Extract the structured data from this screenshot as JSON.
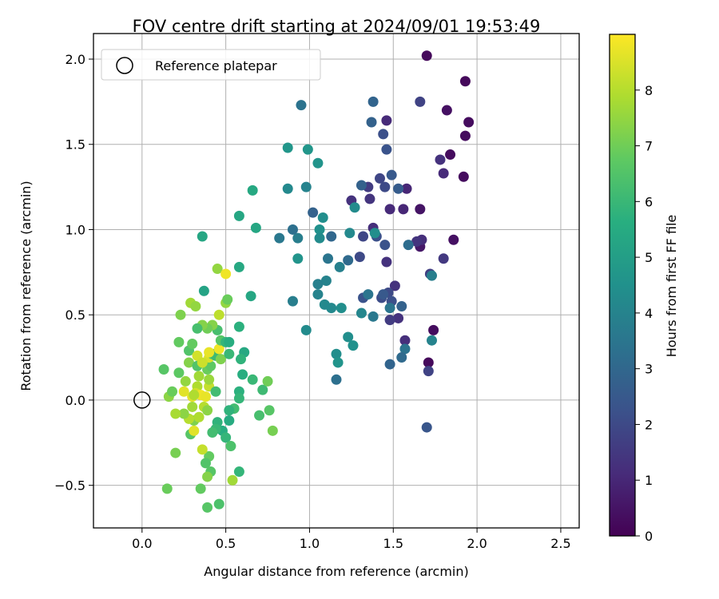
{
  "chart_data": {
    "type": "scatter",
    "title": "FOV centre drift starting at 2024/09/01 19:53:49",
    "xlabel": "Angular distance from reference (arcmin)",
    "ylabel": "Rotation from reference (arcmin)",
    "xlim": [
      -0.29,
      2.61
    ],
    "ylim": [
      -0.75,
      2.15
    ],
    "xticks": [
      0.0,
      0.5,
      1.0,
      1.5,
      2.0,
      2.5
    ],
    "xtick_labels": [
      "0.0",
      "0.5",
      "1.0",
      "1.5",
      "2.0",
      "2.5"
    ],
    "yticks": [
      -0.5,
      0.0,
      0.5,
      1.0,
      1.5,
      2.0
    ],
    "ytick_labels": [
      "−0.5",
      "0.0",
      "0.5",
      "1.0",
      "1.5",
      "2.0"
    ],
    "grid": true,
    "legend": {
      "placement": "top-left",
      "entries": [
        "Reference platepar"
      ]
    },
    "reference_point": {
      "x": 0.0,
      "y": 0.0,
      "marker": "open-circle"
    },
    "colorbar": {
      "label": "Hours from first FF file",
      "colormap": "viridis",
      "range": [
        0,
        9
      ],
      "ticks": [
        0,
        1,
        2,
        3,
        4,
        5,
        6,
        7,
        8
      ],
      "tick_labels": [
        "0",
        "1",
        "2",
        "3",
        "4",
        "5",
        "6",
        "7",
        "8"
      ]
    },
    "points": [
      {
        "x": 1.7,
        "y": 2.02,
        "c": 0.2
      },
      {
        "x": 1.93,
        "y": 1.87,
        "c": 0.2
      },
      {
        "x": 1.95,
        "y": 1.63,
        "c": 0.3
      },
      {
        "x": 1.82,
        "y": 1.7,
        "c": 0.4
      },
      {
        "x": 1.93,
        "y": 1.55,
        "c": 0.3
      },
      {
        "x": 1.84,
        "y": 1.44,
        "c": 0.3
      },
      {
        "x": 1.92,
        "y": 1.31,
        "c": 0.3
      },
      {
        "x": 1.66,
        "y": 1.12,
        "c": 0.5
      },
      {
        "x": 1.86,
        "y": 0.94,
        "c": 0.4
      },
      {
        "x": 1.66,
        "y": 0.9,
        "c": 0.6
      },
      {
        "x": 1.74,
        "y": 0.41,
        "c": 0.3
      },
      {
        "x": 1.71,
        "y": 0.22,
        "c": 0.2
      },
      {
        "x": 1.66,
        "y": 1.75,
        "c": 1.8
      },
      {
        "x": 1.78,
        "y": 1.41,
        "c": 1.3
      },
      {
        "x": 1.8,
        "y": 1.33,
        "c": 1.1
      },
      {
        "x": 1.58,
        "y": 1.24,
        "c": 1.0
      },
      {
        "x": 1.56,
        "y": 1.12,
        "c": 1.0
      },
      {
        "x": 1.48,
        "y": 1.12,
        "c": 1.1
      },
      {
        "x": 1.46,
        "y": 1.64,
        "c": 1.1
      },
      {
        "x": 1.67,
        "y": 0.94,
        "c": 1.2
      },
      {
        "x": 1.64,
        "y": 0.93,
        "c": 1.4
      },
      {
        "x": 1.8,
        "y": 0.83,
        "c": 1.5
      },
      {
        "x": 1.72,
        "y": 0.74,
        "c": 1.7
      },
      {
        "x": 1.71,
        "y": 0.17,
        "c": 1.8
      },
      {
        "x": 1.7,
        "y": -0.16,
        "c": 2.4
      },
      {
        "x": 1.57,
        "y": 0.35,
        "c": 1.2
      },
      {
        "x": 1.53,
        "y": 0.48,
        "c": 1.3
      },
      {
        "x": 1.48,
        "y": 0.47,
        "c": 1.6
      },
      {
        "x": 1.51,
        "y": 0.67,
        "c": 1.3
      },
      {
        "x": 1.46,
        "y": 0.81,
        "c": 1.3
      },
      {
        "x": 1.38,
        "y": 1.01,
        "c": 1.2
      },
      {
        "x": 1.36,
        "y": 1.18,
        "c": 1.4
      },
      {
        "x": 1.25,
        "y": 1.17,
        "c": 1.3
      },
      {
        "x": 1.35,
        "y": 1.25,
        "c": 1.6
      },
      {
        "x": 1.42,
        "y": 1.3,
        "c": 1.9
      },
      {
        "x": 1.45,
        "y": 1.25,
        "c": 2.0
      },
      {
        "x": 1.44,
        "y": 1.56,
        "c": 2.2
      },
      {
        "x": 1.46,
        "y": 1.47,
        "c": 2.3
      },
      {
        "x": 1.49,
        "y": 1.32,
        "c": 2.5
      },
      {
        "x": 1.53,
        "y": 1.24,
        "c": 2.6
      },
      {
        "x": 1.38,
        "y": 1.75,
        "c": 2.9
      },
      {
        "x": 1.37,
        "y": 1.63,
        "c": 2.8
      },
      {
        "x": 1.45,
        "y": 0.91,
        "c": 2.3
      },
      {
        "x": 1.4,
        "y": 0.96,
        "c": 2.2
      },
      {
        "x": 1.32,
        "y": 0.96,
        "c": 1.9
      },
      {
        "x": 1.3,
        "y": 0.84,
        "c": 2.0
      },
      {
        "x": 1.32,
        "y": 0.6,
        "c": 2.3
      },
      {
        "x": 1.43,
        "y": 0.6,
        "c": 2.1
      },
      {
        "x": 1.47,
        "y": 0.63,
        "c": 2.0
      },
      {
        "x": 1.44,
        "y": 0.62,
        "c": 2.5
      },
      {
        "x": 1.49,
        "y": 0.58,
        "c": 2.2
      },
      {
        "x": 1.59,
        "y": 0.91,
        "c": 3.2
      },
      {
        "x": 1.73,
        "y": 0.73,
        "c": 3.8
      },
      {
        "x": 1.73,
        "y": 0.35,
        "c": 4.0
      },
      {
        "x": 1.57,
        "y": 0.3,
        "c": 3.4
      },
      {
        "x": 1.55,
        "y": 0.25,
        "c": 3.1
      },
      {
        "x": 1.48,
        "y": 0.21,
        "c": 2.9
      },
      {
        "x": 1.48,
        "y": 0.54,
        "c": 3.5
      },
      {
        "x": 1.55,
        "y": 0.55,
        "c": 2.8
      },
      {
        "x": 1.38,
        "y": 0.49,
        "c": 3.6
      },
      {
        "x": 1.31,
        "y": 0.51,
        "c": 4.1
      },
      {
        "x": 1.35,
        "y": 0.62,
        "c": 3.5
      },
      {
        "x": 1.23,
        "y": 0.82,
        "c": 3.1
      },
      {
        "x": 1.24,
        "y": 0.98,
        "c": 4.2
      },
      {
        "x": 1.27,
        "y": 1.13,
        "c": 4.3
      },
      {
        "x": 1.31,
        "y": 1.26,
        "c": 2.8
      },
      {
        "x": 1.39,
        "y": 0.98,
        "c": 4.4
      },
      {
        "x": 1.13,
        "y": 0.96,
        "c": 3.0
      },
      {
        "x": 1.18,
        "y": 0.78,
        "c": 3.9
      },
      {
        "x": 1.11,
        "y": 0.83,
        "c": 3.5
      },
      {
        "x": 1.1,
        "y": 0.7,
        "c": 4.0
      },
      {
        "x": 1.05,
        "y": 0.68,
        "c": 3.9
      },
      {
        "x": 1.05,
        "y": 0.62,
        "c": 4.0
      },
      {
        "x": 1.09,
        "y": 0.56,
        "c": 4.2
      },
      {
        "x": 1.13,
        "y": 0.54,
        "c": 4.2
      },
      {
        "x": 1.19,
        "y": 0.54,
        "c": 4.4
      },
      {
        "x": 1.23,
        "y": 0.37,
        "c": 4.4
      },
      {
        "x": 1.26,
        "y": 0.32,
        "c": 4.5
      },
      {
        "x": 1.16,
        "y": 0.27,
        "c": 4.4
      },
      {
        "x": 1.17,
        "y": 0.22,
        "c": 4.6
      },
      {
        "x": 1.16,
        "y": 0.12,
        "c": 3.3
      },
      {
        "x": 0.98,
        "y": 0.41,
        "c": 4.3
      },
      {
        "x": 0.9,
        "y": 0.58,
        "c": 3.8
      },
      {
        "x": 0.93,
        "y": 0.83,
        "c": 4.6
      },
      {
        "x": 0.93,
        "y": 0.95,
        "c": 3.8
      },
      {
        "x": 0.9,
        "y": 1.0,
        "c": 3.3
      },
      {
        "x": 0.82,
        "y": 0.95,
        "c": 3.6
      },
      {
        "x": 1.06,
        "y": 1.0,
        "c": 4.5
      },
      {
        "x": 1.06,
        "y": 0.95,
        "c": 4.3
      },
      {
        "x": 1.08,
        "y": 1.07,
        "c": 4.4
      },
      {
        "x": 1.02,
        "y": 1.1,
        "c": 2.8
      },
      {
        "x": 0.98,
        "y": 1.25,
        "c": 4.0
      },
      {
        "x": 0.87,
        "y": 1.24,
        "c": 4.2
      },
      {
        "x": 1.05,
        "y": 1.39,
        "c": 4.6
      },
      {
        "x": 0.99,
        "y": 1.47,
        "c": 4.7
      },
      {
        "x": 0.87,
        "y": 1.48,
        "c": 4.7
      },
      {
        "x": 0.95,
        "y": 1.73,
        "c": 3.4
      },
      {
        "x": 0.66,
        "y": 1.23,
        "c": 5.4
      },
      {
        "x": 0.68,
        "y": 1.01,
        "c": 5.3
      },
      {
        "x": 0.58,
        "y": 1.08,
        "c": 5.3
      },
      {
        "x": 0.58,
        "y": 0.78,
        "c": 5.4
      },
      {
        "x": 0.65,
        "y": 0.61,
        "c": 5.3
      },
      {
        "x": 0.58,
        "y": 0.43,
        "c": 5.7
      },
      {
        "x": 0.36,
        "y": 0.96,
        "c": 5.3
      },
      {
        "x": 0.37,
        "y": 0.64,
        "c": 5.2
      },
      {
        "x": 0.61,
        "y": 0.28,
        "c": 5.4
      },
      {
        "x": 0.59,
        "y": 0.24,
        "c": 5.8
      },
      {
        "x": 0.6,
        "y": 0.15,
        "c": 5.6
      },
      {
        "x": 0.58,
        "y": 0.05,
        "c": 5.7
      },
      {
        "x": 0.58,
        "y": 0.01,
        "c": 5.9
      },
      {
        "x": 0.55,
        "y": -0.05,
        "c": 6.2
      },
      {
        "x": 0.52,
        "y": -0.06,
        "c": 5.8
      },
      {
        "x": 0.52,
        "y": -0.12,
        "c": 5.5
      },
      {
        "x": 0.48,
        "y": -0.18,
        "c": 5.6
      },
      {
        "x": 0.45,
        "y": -0.13,
        "c": 5.8
      },
      {
        "x": 0.44,
        "y": -0.17,
        "c": 6.0
      },
      {
        "x": 0.42,
        "y": -0.19,
        "c": 6.2
      },
      {
        "x": 0.5,
        "y": -0.22,
        "c": 5.9
      },
      {
        "x": 0.53,
        "y": -0.27,
        "c": 6.4
      },
      {
        "x": 0.58,
        "y": -0.42,
        "c": 5.9
      },
      {
        "x": 0.54,
        "y": -0.47,
        "c": 7.7
      },
      {
        "x": 0.4,
        "y": -0.33,
        "c": 6.8
      },
      {
        "x": 0.38,
        "y": -0.37,
        "c": 6.5
      },
      {
        "x": 0.41,
        "y": -0.42,
        "c": 6.6
      },
      {
        "x": 0.39,
        "y": -0.45,
        "c": 7.3
      },
      {
        "x": 0.35,
        "y": -0.52,
        "c": 6.8
      },
      {
        "x": 0.39,
        "y": -0.63,
        "c": 6.6
      },
      {
        "x": 0.46,
        "y": -0.61,
        "c": 6.4
      },
      {
        "x": 0.15,
        "y": -0.52,
        "c": 6.9
      },
      {
        "x": 0.2,
        "y": -0.31,
        "c": 7.1
      },
      {
        "x": 0.29,
        "y": -0.2,
        "c": 6.6
      },
      {
        "x": 0.31,
        "y": -0.12,
        "c": 7.2
      },
      {
        "x": 0.36,
        "y": -0.29,
        "c": 8.2
      },
      {
        "x": 0.31,
        "y": -0.18,
        "c": 8.6
      },
      {
        "x": 0.34,
        "y": -0.1,
        "c": 7.9
      },
      {
        "x": 0.3,
        "y": -0.04,
        "c": 7.7
      },
      {
        "x": 0.28,
        "y": -0.11,
        "c": 8.0
      },
      {
        "x": 0.25,
        "y": -0.08,
        "c": 7.4
      },
      {
        "x": 0.2,
        "y": -0.08,
        "c": 7.8
      },
      {
        "x": 0.16,
        "y": 0.02,
        "c": 7.4
      },
      {
        "x": 0.18,
        "y": 0.05,
        "c": 6.9
      },
      {
        "x": 0.13,
        "y": 0.18,
        "c": 6.6
      },
      {
        "x": 0.22,
        "y": 0.16,
        "c": 6.7
      },
      {
        "x": 0.26,
        "y": 0.11,
        "c": 7.5
      },
      {
        "x": 0.25,
        "y": 0.05,
        "c": 8.6
      },
      {
        "x": 0.28,
        "y": 0.22,
        "c": 7.3
      },
      {
        "x": 0.28,
        "y": 0.29,
        "c": 6.5
      },
      {
        "x": 0.3,
        "y": 0.33,
        "c": 6.8
      },
      {
        "x": 0.33,
        "y": 0.26,
        "c": 8.4
      },
      {
        "x": 0.33,
        "y": 0.2,
        "c": 6.5
      },
      {
        "x": 0.34,
        "y": 0.14,
        "c": 7.7
      },
      {
        "x": 0.33,
        "y": 0.08,
        "c": 7.9
      },
      {
        "x": 0.32,
        "y": 0.04,
        "c": 8.4
      },
      {
        "x": 0.3,
        "y": 0.02,
        "c": 8.6
      },
      {
        "x": 0.35,
        "y": 0.03,
        "c": 8.8
      },
      {
        "x": 0.38,
        "y": 0.02,
        "c": 8.7
      },
      {
        "x": 0.37,
        "y": -0.04,
        "c": 8.0
      },
      {
        "x": 0.39,
        "y": -0.06,
        "c": 7.4
      },
      {
        "x": 0.4,
        "y": 0.08,
        "c": 8.2
      },
      {
        "x": 0.4,
        "y": 0.12,
        "c": 7.6
      },
      {
        "x": 0.39,
        "y": 0.18,
        "c": 6.9
      },
      {
        "x": 0.41,
        "y": 0.2,
        "c": 6.7
      },
      {
        "x": 0.4,
        "y": 0.25,
        "c": 8.5
      },
      {
        "x": 0.42,
        "y": 0.27,
        "c": 6.4
      },
      {
        "x": 0.44,
        "y": 0.26,
        "c": 6.1
      },
      {
        "x": 0.47,
        "y": 0.24,
        "c": 7.2
      },
      {
        "x": 0.46,
        "y": 0.3,
        "c": 8.8
      },
      {
        "x": 0.47,
        "y": 0.35,
        "c": 6.6
      },
      {
        "x": 0.5,
        "y": 0.34,
        "c": 5.9
      },
      {
        "x": 0.52,
        "y": 0.34,
        "c": 5.6
      },
      {
        "x": 0.52,
        "y": 0.27,
        "c": 6.0
      },
      {
        "x": 0.45,
        "y": 0.41,
        "c": 6.3
      },
      {
        "x": 0.42,
        "y": 0.44,
        "c": 7.3
      },
      {
        "x": 0.39,
        "y": 0.42,
        "c": 7.0
      },
      {
        "x": 0.36,
        "y": 0.44,
        "c": 7.3
      },
      {
        "x": 0.33,
        "y": 0.42,
        "c": 6.3
      },
      {
        "x": 0.22,
        "y": 0.34,
        "c": 6.8
      },
      {
        "x": 0.23,
        "y": 0.5,
        "c": 7.2
      },
      {
        "x": 0.29,
        "y": 0.57,
        "c": 7.7
      },
      {
        "x": 0.32,
        "y": 0.55,
        "c": 7.5
      },
      {
        "x": 0.46,
        "y": 0.5,
        "c": 8.1
      },
      {
        "x": 0.5,
        "y": 0.57,
        "c": 7.5
      },
      {
        "x": 0.51,
        "y": 0.59,
        "c": 6.9
      },
      {
        "x": 0.45,
        "y": 0.77,
        "c": 7.5
      },
      {
        "x": 0.5,
        "y": 0.74,
        "c": 8.8
      },
      {
        "x": 0.66,
        "y": 0.12,
        "c": 6.0
      },
      {
        "x": 0.72,
        "y": 0.06,
        "c": 6.1
      },
      {
        "x": 0.7,
        "y": -0.09,
        "c": 6.3
      },
      {
        "x": 0.76,
        "y": -0.06,
        "c": 6.6
      },
      {
        "x": 0.78,
        "y": -0.18,
        "c": 7.1
      },
      {
        "x": 0.75,
        "y": 0.11,
        "c": 7.0
      },
      {
        "x": 0.4,
        "y": 0.28,
        "c": 8.7
      },
      {
        "x": 0.36,
        "y": 0.22,
        "c": 8.3
      },
      {
        "x": 0.31,
        "y": 0.03,
        "c": 7.9
      },
      {
        "x": 0.44,
        "y": 0.05,
        "c": 6.2
      }
    ]
  }
}
